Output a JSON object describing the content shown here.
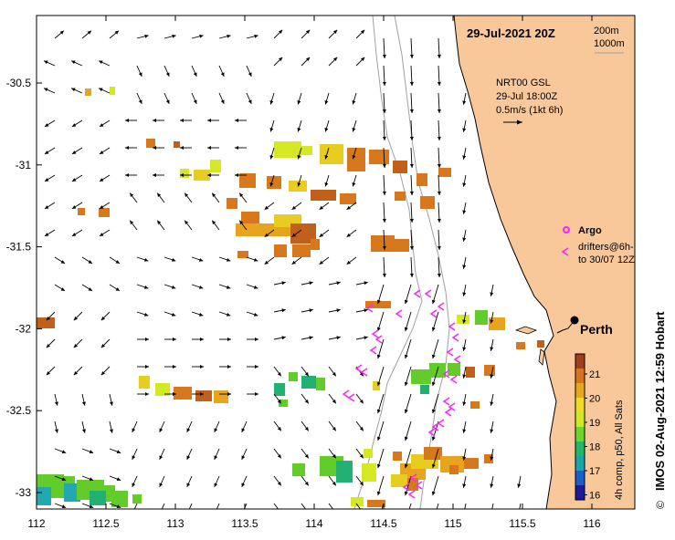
{
  "title": "29-Jul-2021 20Z",
  "depth_legend": {
    "contour1": "200m",
    "contour2": "1000m"
  },
  "current_legend": {
    "line1": "NRT00 GSL",
    "line2": "29-Jul 18:00Z",
    "line3": "0.5m/s (1kt 6h)"
  },
  "argo_legend": {
    "label": "Argo"
  },
  "drifter_legend": {
    "line1": "drifters@6h-",
    "line2": "to 30/07 12Z"
  },
  "city": {
    "label": "Perth"
  },
  "colorbar": {
    "label": "4h comp, p50, All Sats",
    "ticks": [
      "21",
      "20",
      "19",
      "18",
      "17",
      "16"
    ],
    "colors": [
      "#a0401a",
      "#d8741b",
      "#e8a81c",
      "#f0dc20",
      "#cdea22",
      "#6cd62a",
      "#22b86a",
      "#18a6a8",
      "#1760c8",
      "#1a1a9a"
    ]
  },
  "credit": "IMOS 02-Aug-2021 12:59 Hobart",
  "credit_symbol": "©",
  "axes": {
    "x_ticks": [
      "112",
      "112.5",
      "113",
      "113.5",
      "114",
      "114.5",
      "115",
      "115.5",
      "116"
    ],
    "y_ticks": [
      "-30.5",
      "-31",
      "-31.5",
      "-32",
      "-32.5",
      "-33"
    ]
  },
  "colors": {
    "land": "#f8c89a",
    "arrow": "#000000",
    "drifter": "#ff22ff",
    "argo": "#ff22ff"
  }
}
